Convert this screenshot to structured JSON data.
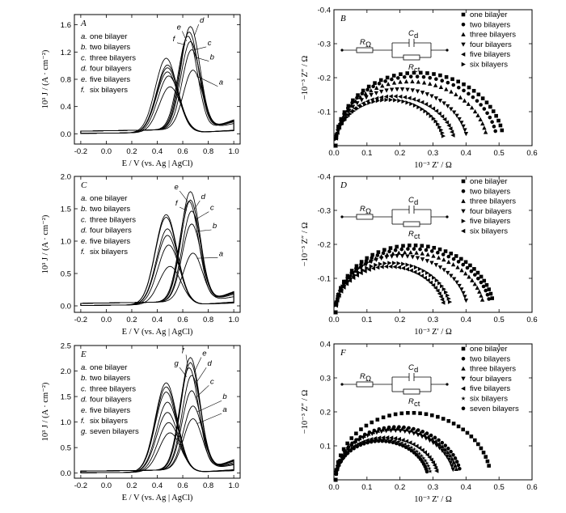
{
  "chart_data": [
    {
      "panel": "A",
      "type": "line",
      "xlabel": "E / V (vs. Ag | AgCl)",
      "ylabel": "10³ J / (A · cm⁻²)",
      "xlim": [
        -0.25,
        1.05
      ],
      "ylim": [
        -0.15,
        1.75
      ],
      "xticks": [
        "-0.2",
        "0.0",
        "0.2",
        "0.4",
        "0.6",
        "0.8",
        "1.0"
      ],
      "xtickvals": [
        -0.2,
        0,
        0.2,
        0.4,
        0.6,
        0.8,
        1.0
      ],
      "yticks": [
        "0.0",
        "0.4",
        "0.8",
        "1.2",
        "1.6"
      ],
      "ytickvals": [
        0,
        0.4,
        0.8,
        1.2,
        1.6
      ],
      "legend": [
        {
          "letter": "a.",
          "text": "one bilayer"
        },
        {
          "letter": "b.",
          "text": "two bilayers"
        },
        {
          "letter": "c.",
          "text": "three bilayers"
        },
        {
          "letter": "d.",
          "text": "four bilayers"
        },
        {
          "letter": "e.",
          "text": "five bilayers"
        },
        {
          "letter": "f.",
          "text": "six bilayers"
        }
      ],
      "series": [
        {
          "name": "one bilayer",
          "letter": "a",
          "label_at": [
            0.9,
            0.72
          ],
          "anodic_peak": [
            0.68,
            0.92
          ],
          "cathodic_peak": [
            0.5,
            0.7
          ]
        },
        {
          "name": "two bilayers",
          "letter": "b",
          "label_at": [
            0.83,
            1.09
          ],
          "anodic_peak": [
            0.67,
            1.22
          ],
          "cathodic_peak": [
            0.49,
            0.86
          ]
        },
        {
          "name": "three bilayers",
          "letter": "c",
          "label_at": [
            0.81,
            1.3
          ],
          "anodic_peak": [
            0.66,
            1.34
          ],
          "cathodic_peak": [
            0.48,
            0.92
          ]
        },
        {
          "name": "four bilayers",
          "letter": "d",
          "label_at": [
            0.75,
            1.63
          ],
          "anodic_peak": [
            0.66,
            1.56
          ],
          "cathodic_peak": [
            0.48,
            0.98
          ]
        },
        {
          "name": "five bilayers",
          "letter": "e",
          "label_at": [
            0.57,
            1.53
          ],
          "anodic_peak": [
            0.65,
            1.48
          ],
          "cathodic_peak": [
            0.48,
            1.02
          ]
        },
        {
          "name": "six bilayers",
          "letter": "f",
          "label_at": [
            0.53,
            1.36
          ],
          "anodic_peak": [
            0.64,
            1.42
          ],
          "cathodic_peak": [
            0.47,
            1.12
          ]
        }
      ]
    },
    {
      "panel": "B",
      "type": "scatter",
      "xlabel": "10⁻³ Z′ / Ω",
      "ylabel": "−10⁻³ Z″ / Ω",
      "xlim": [
        0,
        0.6
      ],
      "ylim": [
        0,
        -0.4
      ],
      "inverted_y": true,
      "xticks": [
        "0.0",
        "0.1",
        "0.2",
        "0.3",
        "0.4",
        "0.5",
        "0.6"
      ],
      "xtickvals": [
        0,
        0.1,
        0.2,
        0.3,
        0.4,
        0.5,
        0.6
      ],
      "yticks": [
        "-0.4",
        "-0.3",
        "-0.2",
        "-0.1"
      ],
      "ytickvals": [
        -0.4,
        -0.3,
        -0.2,
        -0.1
      ],
      "circuit": {
        "r1": "R",
        "r1_sub": "Ω",
        "c": "C",
        "c_sub": "d",
        "r2": "R",
        "r2_sub": "ct"
      },
      "series": [
        {
          "name": "one bilayer",
          "marker": "square",
          "r_omega": 0.0,
          "r_ct": 0.51,
          "peak": 0.207
        },
        {
          "name": "two bilayers",
          "marker": "circle",
          "r_omega": 0.0,
          "r_ct": 0.49,
          "peak": 0.196
        },
        {
          "name": "three bilayers",
          "marker": "triangle-up",
          "r_omega": 0.0,
          "r_ct": 0.46,
          "peak": 0.182
        },
        {
          "name": "four bilayers",
          "marker": "triangle-down",
          "r_omega": 0.0,
          "r_ct": 0.4,
          "peak": 0.16
        },
        {
          "name": "five bilayers",
          "marker": "triangle-left",
          "r_omega": 0.0,
          "r_ct": 0.36,
          "peak": 0.14
        },
        {
          "name": "six bilayers",
          "marker": "triangle-right",
          "r_omega": 0.0,
          "r_ct": 0.33,
          "peak": 0.13
        }
      ]
    },
    {
      "panel": "C",
      "type": "line",
      "xlabel": "E / V (vs. Ag | AgCl)",
      "ylabel": "10³ J / (A · cm⁻²)",
      "xlim": [
        -0.25,
        1.05
      ],
      "ylim": [
        -0.1,
        2.0
      ],
      "xticks": [
        "-0.2",
        "0.0",
        "0.2",
        "0.4",
        "0.6",
        "0.8",
        "1.0"
      ],
      "xtickvals": [
        -0.2,
        0,
        0.2,
        0.4,
        0.6,
        0.8,
        1.0
      ],
      "yticks": [
        "0.0",
        "0.5",
        "1.0",
        "1.5",
        "2.0"
      ],
      "ytickvals": [
        0,
        0.5,
        1.0,
        1.5,
        2.0
      ],
      "legend": [
        {
          "letter": "a.",
          "text": "one bilayer"
        },
        {
          "letter": "b.",
          "text": "two bilayers"
        },
        {
          "letter": "c.",
          "text": "three bilayers"
        },
        {
          "letter": "d.",
          "text": "four bilayers"
        },
        {
          "letter": "e.",
          "text": "five bilayers"
        },
        {
          "letter": "f.",
          "text": "six bilayers"
        }
      ],
      "series": [
        {
          "name": "one bilayer",
          "letter": "a",
          "label_at": [
            0.9,
            0.77
          ],
          "anodic_peak": [
            0.68,
            0.8
          ],
          "cathodic_peak": [
            0.5,
            0.62
          ]
        },
        {
          "name": "two bilayers",
          "letter": "b",
          "label_at": [
            0.85,
            1.2
          ],
          "anodic_peak": [
            0.67,
            1.25
          ],
          "cathodic_peak": [
            0.49,
            0.95
          ]
        },
        {
          "name": "three bilayers",
          "letter": "c",
          "label_at": [
            0.83,
            1.48
          ],
          "anodic_peak": [
            0.67,
            1.45
          ],
          "cathodic_peak": [
            0.48,
            1.1
          ]
        },
        {
          "name": "four bilayers",
          "letter": "d",
          "label_at": [
            0.76,
            1.65
          ],
          "anodic_peak": [
            0.66,
            1.62
          ],
          "cathodic_peak": [
            0.48,
            1.2
          ]
        },
        {
          "name": "five bilayers",
          "letter": "e",
          "label_at": [
            0.55,
            1.8
          ],
          "anodic_peak": [
            0.66,
            1.75
          ],
          "cathodic_peak": [
            0.47,
            1.38
          ]
        },
        {
          "name": "six bilayers",
          "letter": "f",
          "label_at": [
            0.55,
            1.55
          ],
          "anodic_peak": [
            0.65,
            1.6
          ],
          "cathodic_peak": [
            0.47,
            1.42
          ]
        }
      ]
    },
    {
      "panel": "D",
      "type": "scatter",
      "xlabel": "10⁻³ Z′ / Ω",
      "ylabel": "−10⁻³ Z″ / Ω",
      "xlim": [
        0,
        0.6
      ],
      "ylim": [
        0,
        -0.4
      ],
      "inverted_y": true,
      "xticks": [
        "0.0",
        "0.1",
        "0.2",
        "0.3",
        "0.4",
        "0.5",
        "0.6"
      ],
      "xtickvals": [
        0,
        0.1,
        0.2,
        0.3,
        0.4,
        0.5,
        0.6
      ],
      "yticks": [
        "-0.4",
        "-0.3",
        "-0.2",
        "-0.1"
      ],
      "ytickvals": [
        -0.4,
        -0.3,
        -0.2,
        -0.1
      ],
      "circuit": {
        "r1": "R",
        "r1_sub": "Ω",
        "c": "C",
        "c_sub": "d",
        "r2": "R",
        "r2_sub": "ct"
      },
      "series": [
        {
          "name": "one bilayer",
          "marker": "square",
          "r_omega": 0.0,
          "r_ct": 0.48,
          "peak": 0.19
        },
        {
          "name": "two bilayers",
          "marker": "circle",
          "r_omega": 0.0,
          "r_ct": 0.47,
          "peak": 0.18
        },
        {
          "name": "three bilayers",
          "marker": "triangle-up",
          "r_omega": 0.0,
          "r_ct": 0.45,
          "peak": 0.17
        },
        {
          "name": "four bilayers",
          "marker": "triangle-down",
          "r_omega": 0.0,
          "r_ct": 0.4,
          "peak": 0.16
        },
        {
          "name": "five bilayers",
          "marker": "triangle-right",
          "r_omega": 0.0,
          "r_ct": 0.35,
          "peak": 0.14
        },
        {
          "name": "six bilayers",
          "marker": "triangle-left",
          "r_omega": 0.0,
          "r_ct": 0.33,
          "peak": 0.13
        }
      ]
    },
    {
      "panel": "E",
      "type": "line",
      "xlabel": "E / V (vs. Ag | AgCl)",
      "ylabel": "10³ J / (A · cm⁻²)",
      "xlim": [
        -0.25,
        1.05
      ],
      "ylim": [
        -0.1,
        2.5
      ],
      "xticks": [
        "-0.2",
        "0.0",
        "0.2",
        "0.4",
        "0.6",
        "0.8",
        "1.0"
      ],
      "xtickvals": [
        -0.2,
        0,
        0.2,
        0.4,
        0.6,
        0.8,
        1.0
      ],
      "yticks": [
        "0.0",
        "0.5",
        "1.0",
        "1.5",
        "2.0",
        "2.5"
      ],
      "ytickvals": [
        0,
        0.5,
        1.0,
        1.5,
        2.0,
        2.5
      ],
      "legend": [
        {
          "letter": "a.",
          "text": "one bilayer"
        },
        {
          "letter": "b.",
          "text": "two bilayers"
        },
        {
          "letter": "c.",
          "text": "three bilayers"
        },
        {
          "letter": "d.",
          "text": "four bilayers"
        },
        {
          "letter": "e.",
          "text": "five bilayers"
        },
        {
          "letter": "f.",
          "text": "six bilayers"
        },
        {
          "letter": "g.",
          "text": "seven bilayers"
        }
      ],
      "series": [
        {
          "name": "one bilayer",
          "letter": "a",
          "label_at": [
            0.93,
            1.2
          ],
          "anodic_peak": [
            0.68,
            1.05
          ],
          "cathodic_peak": [
            0.5,
            0.8
          ]
        },
        {
          "name": "two bilayers",
          "letter": "b",
          "label_at": [
            0.93,
            1.45
          ],
          "anodic_peak": [
            0.68,
            1.3
          ],
          "cathodic_peak": [
            0.49,
            1.0
          ]
        },
        {
          "name": "three bilayers",
          "letter": "c",
          "label_at": [
            0.83,
            1.75
          ],
          "anodic_peak": [
            0.67,
            1.6
          ],
          "cathodic_peak": [
            0.48,
            1.2
          ]
        },
        {
          "name": "four bilayers",
          "letter": "d",
          "label_at": [
            0.81,
            2.1
          ],
          "anodic_peak": [
            0.67,
            1.9
          ],
          "cathodic_peak": [
            0.48,
            1.4
          ]
        },
        {
          "name": "five bilayers",
          "letter": "e",
          "label_at": [
            0.77,
            2.3
          ],
          "anodic_peak": [
            0.66,
            2.15
          ],
          "cathodic_peak": [
            0.47,
            1.6
          ]
        },
        {
          "name": "six bilayers",
          "letter": "f",
          "label_at": [
            0.6,
            2.35
          ],
          "anodic_peak": [
            0.66,
            2.25
          ],
          "cathodic_peak": [
            0.47,
            1.7
          ]
        },
        {
          "name": "seven bilayers",
          "letter": "g",
          "label_at": [
            0.55,
            2.1
          ],
          "anodic_peak": [
            0.65,
            2.05
          ],
          "cathodic_peak": [
            0.47,
            1.78
          ]
        }
      ]
    },
    {
      "panel": "F",
      "type": "scatter",
      "xlabel": "10⁻³ Z′ / Ω",
      "ylabel": "−10⁻³ Z″ / Ω",
      "xlim": [
        0,
        0.6
      ],
      "ylim": [
        0,
        0.4
      ],
      "inverted_y": false,
      "xticks": [
        "0.0",
        "0.1",
        "0.2",
        "0.3",
        "0.4",
        "0.5",
        "0.6"
      ],
      "xtickvals": [
        0,
        0.1,
        0.2,
        0.3,
        0.4,
        0.5,
        0.6
      ],
      "yticks": [
        "0.1",
        "0.2",
        "0.3",
        "0.4"
      ],
      "ytickvals": [
        0.1,
        0.2,
        0.3,
        0.4
      ],
      "circuit": {
        "r1": "R",
        "r1_sub": "Ω",
        "c": "C",
        "c_sub": "d",
        "r2": "R",
        "r2_sub": "ct"
      },
      "series": [
        {
          "name": "one bilayer",
          "marker": "square",
          "r_omega": 0.0,
          "r_ct": 0.47,
          "peak": 0.19
        },
        {
          "name": "two bilayers",
          "marker": "circle",
          "r_omega": 0.0,
          "r_ct": 0.38,
          "peak": 0.15
        },
        {
          "name": "three bilayers",
          "marker": "triangle-up",
          "r_omega": 0.0,
          "r_ct": 0.37,
          "peak": 0.145
        },
        {
          "name": "four bilayers",
          "marker": "triangle-down",
          "r_omega": 0.0,
          "r_ct": 0.36,
          "peak": 0.14
        },
        {
          "name": "five bilayers",
          "marker": "triangle-left",
          "r_omega": 0.0,
          "r_ct": 0.31,
          "peak": 0.12
        },
        {
          "name": "six bilayers",
          "marker": "star",
          "r_omega": 0.0,
          "r_ct": 0.29,
          "peak": 0.115
        },
        {
          "name": "seven bilayers",
          "marker": "circle",
          "r_omega": 0.0,
          "r_ct": 0.28,
          "peak": 0.11
        }
      ]
    }
  ]
}
